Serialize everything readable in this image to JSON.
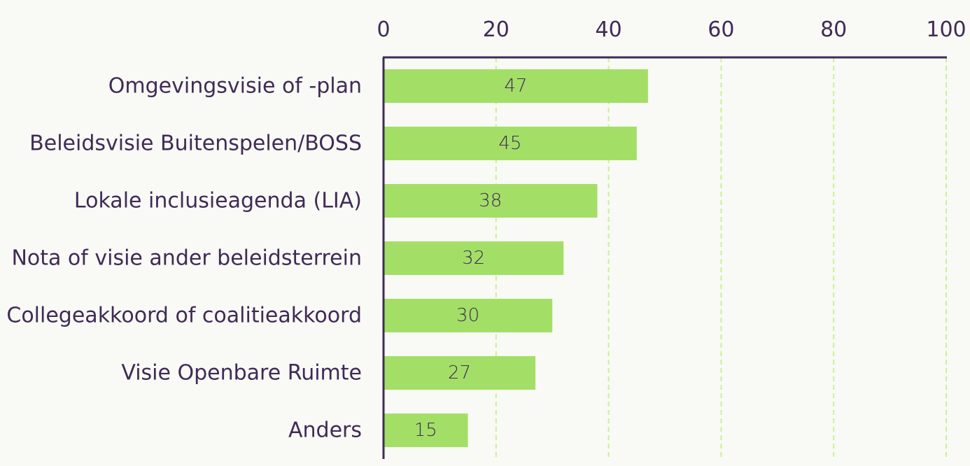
{
  "chart_data": {
    "type": "bar",
    "orientation": "horizontal",
    "categories": [
      "Omgevingsvisie of -plan",
      "Beleidsvisie Buitenspelen/BOSS",
      "Lokale inclusieagenda (LIA)",
      "Nota of visie ander beleidsterrein",
      "Collegeakkoord of coalitieakkoord",
      "Visie Openbare Ruimte",
      "Anders"
    ],
    "values": [
      47,
      45,
      38,
      32,
      30,
      27,
      15
    ],
    "data_labels": [
      "47",
      "45",
      "38",
      "32",
      "30",
      "27",
      "15"
    ],
    "xlim": [
      0,
      100
    ],
    "x_ticks": [
      0,
      20,
      40,
      60,
      80,
      100
    ],
    "x_tick_labels": [
      "0",
      "20",
      "40",
      "60",
      "80",
      "100"
    ],
    "x_axis_position": "top",
    "grid": "vertical-dashed",
    "legend": "none",
    "title": "",
    "xlabel": "",
    "ylabel": "",
    "colors": {
      "bar": "#a3df66",
      "grid": "#c8f296",
      "axis": "#3f2b56",
      "text": "#3f2b56",
      "background": "#f9f9f5"
    }
  }
}
